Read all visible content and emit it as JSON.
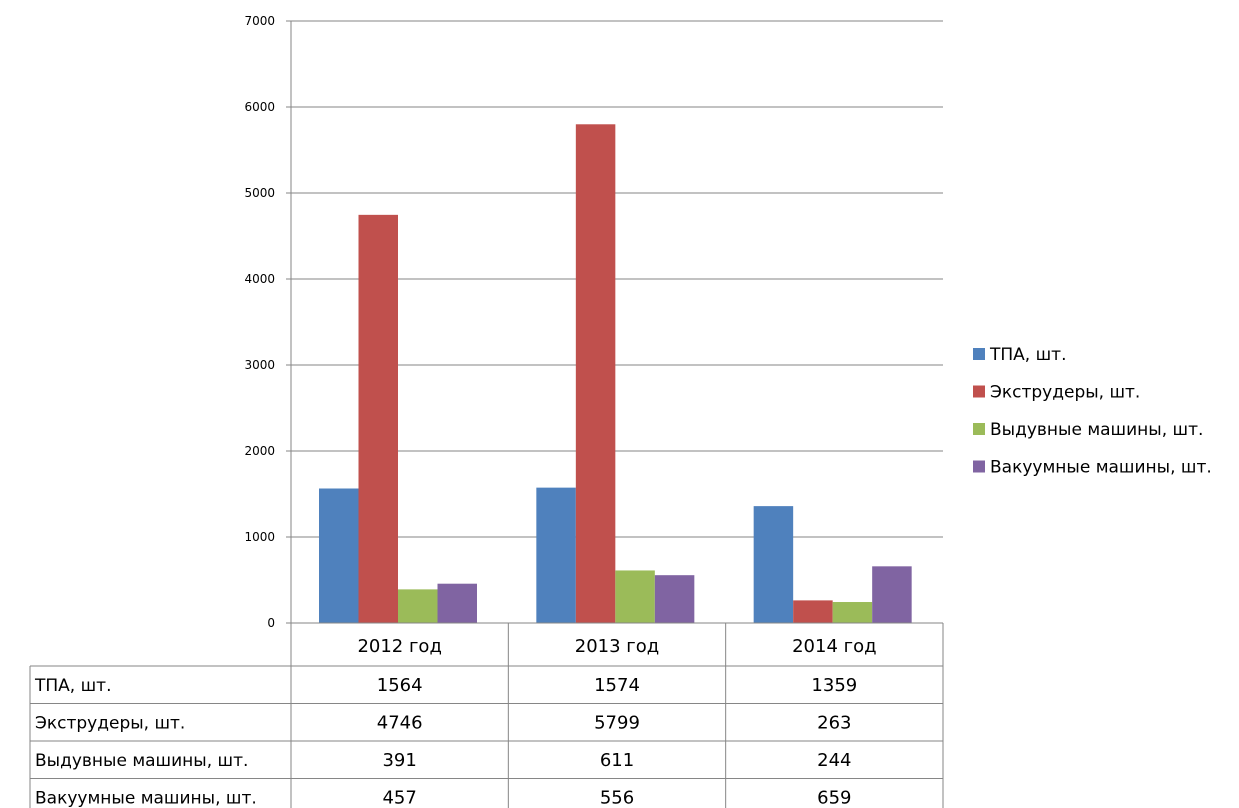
{
  "chart_data": {
    "type": "bar",
    "categories": [
      "2012 год",
      "2013 год",
      "2014 год"
    ],
    "series": [
      {
        "name": "ТПА, шт.",
        "values": [
          1564,
          1574,
          1359
        ],
        "color": "#4f81bd"
      },
      {
        "name": "Экструдеры, шт.",
        "values": [
          4746,
          5799,
          263
        ],
        "color": "#c0504d"
      },
      {
        "name": "Выдувные машины, шт.",
        "values": [
          391,
          611,
          244
        ],
        "color": "#9bbb59"
      },
      {
        "name": "Вакуумные машины, шт.",
        "values": [
          457,
          556,
          659
        ],
        "color": "#8064a2"
      }
    ],
    "ylim": [
      0,
      7000
    ],
    "yticks": [
      "0",
      "1000",
      "2000",
      "3000",
      "4000",
      "5000",
      "6000",
      "7000"
    ],
    "grid": true,
    "legend": "right",
    "data_table": true,
    "title": "",
    "xlabel": "",
    "ylabel": ""
  }
}
